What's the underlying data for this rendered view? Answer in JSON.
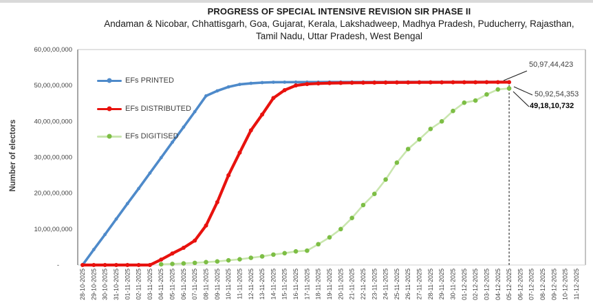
{
  "page": {
    "background": "#FFFFFF",
    "top_bar_color": "#D9D9D9"
  },
  "header": {
    "title": "PROGRESS OF SPECIAL INTENSIVE REVISION SIR PHASE II",
    "subtitle_line1": "Andaman & Nicobar, Chhattisgarh, Goa, Gujarat, Kerala, Lakshadweep, Madhya Pradesh, Puducherry, Rajasthan,",
    "subtitle_line2": "Tamil Nadu, Uttar Pradesh, West Bengal"
  },
  "y_axis": {
    "title": "Number of electors",
    "tick_labels": [
      "60,00,00,000",
      "50,00,00,000",
      "40,00,00,000",
      "30,00,00,000",
      "20,00,00,000",
      "10,00,00,000",
      "-"
    ],
    "tick_values": [
      600000000,
      500000000,
      400000000,
      300000000,
      200000000,
      100000000,
      0
    ]
  },
  "legend": {
    "items": [
      {
        "label": "EFs PRINTED",
        "color": "#4E8ACA"
      },
      {
        "label": "EFs DISTRIBUTED",
        "color": "#E8120E"
      },
      {
        "label": "EFs DIGITISED",
        "color": "#C9E6AE",
        "marker_color": "#7DBE45"
      }
    ]
  },
  "annotations": {
    "printed_final": "50,97,44,423",
    "distributed_final": "50,92,54,353",
    "digitised_final": "49,18,10,732"
  },
  "chart_data": {
    "type": "line",
    "title": "PROGRESS OF SPECIAL INTENSIVE REVISION SIR PHASE II",
    "ylabel": "Number of electors",
    "xlabel": "",
    "ylim": [
      0,
      600000000
    ],
    "grid": false,
    "legend_position": "top-left-inside",
    "dashed_marker_index": 38,
    "x": [
      "28-10-2025",
      "29-10-2025",
      "30-10-2025",
      "31-10-2025",
      "01-11-2025",
      "02-11-2025",
      "03-11-2025",
      "04-11-2025",
      "05-11-2025",
      "06-11-2025",
      "07-11-2025",
      "08-11-2025",
      "09-11-2025",
      "10-11-2025",
      "11-11-2025",
      "12-11-2025",
      "13-11-2025",
      "14-11-2025",
      "15-11-2025",
      "16-11-2025",
      "17-11-2025",
      "18-11-2025",
      "19-11-2025",
      "20-11-2025",
      "21-11-2025",
      "22-11-2025",
      "23-11-2025",
      "24-11-2025",
      "25-11-2025",
      "26-11-2025",
      "27-11-2025",
      "28-11-2025",
      "29-11-2025",
      "30-11-2025",
      "01-12-2025",
      "02-12-2025",
      "03-12-2025",
      "04-12-2025",
      "05-12-2025",
      "06-12-2025",
      "07-12-2025",
      "08-12-2025",
      "09-12-2025",
      "10-12-2025",
      "11-12-2025"
    ],
    "series": [
      {
        "name": "EFs PRINTED",
        "color": "#4E8ACA",
        "line_width": 3.6,
        "marker_radius": 2.4,
        "final_value": 509744423,
        "values": [
          0,
          43000000,
          85000000,
          128000000,
          171000000,
          213000000,
          256000000,
          299000000,
          342000000,
          384000000,
          427000000,
          471000000,
          485000000,
          496000000,
          503000000,
          506000000,
          508000000,
          509000000,
          509200000,
          509300000,
          509400000,
          509400000,
          509500000,
          509500000,
          509500000,
          509600000,
          509600000,
          509600000,
          509600000,
          509700000,
          509700000,
          509700000,
          509700000,
          509700000,
          509700000,
          509700000,
          509740000,
          509744000,
          509744423,
          null,
          null,
          null,
          null,
          null,
          null
        ]
      },
      {
        "name": "EFs DISTRIBUTED",
        "color": "#E8120E",
        "line_width": 4.2,
        "marker_radius": 3.0,
        "final_value": 509254353,
        "values": [
          0,
          0,
          0,
          0,
          0,
          0,
          0,
          15000000,
          32000000,
          48000000,
          68000000,
          110000000,
          175000000,
          250000000,
          313000000,
          375000000,
          419000000,
          465000000,
          487000000,
          500000000,
          504000000,
          505500000,
          506500000,
          507000000,
          507500000,
          507800000,
          508000000,
          508200000,
          508400000,
          508500000,
          508600000,
          508700000,
          508800000,
          508900000,
          509000000,
          509000000,
          509100000,
          509200000,
          509254353,
          null,
          null,
          null,
          null,
          null,
          null
        ]
      },
      {
        "name": "EFs DIGITISED",
        "color": "#C9E6AE",
        "marker_color": "#7DBE45",
        "line_width": 2.6,
        "marker_radius": 3.3,
        "final_value": 491810732,
        "values": [
          null,
          null,
          null,
          null,
          null,
          null,
          null,
          2000000,
          3000000,
          4500000,
          6000000,
          8000000,
          10000000,
          13000000,
          16000000,
          20000000,
          24000000,
          29000000,
          33000000,
          38000000,
          40000000,
          58000000,
          77000000,
          100000000,
          131000000,
          167000000,
          198000000,
          238000000,
          285000000,
          323000000,
          350000000,
          379000000,
          400000000,
          429000000,
          452000000,
          458000000,
          475000000,
          489000000,
          491810732,
          null,
          null,
          null,
          null,
          null,
          null
        ]
      }
    ]
  }
}
